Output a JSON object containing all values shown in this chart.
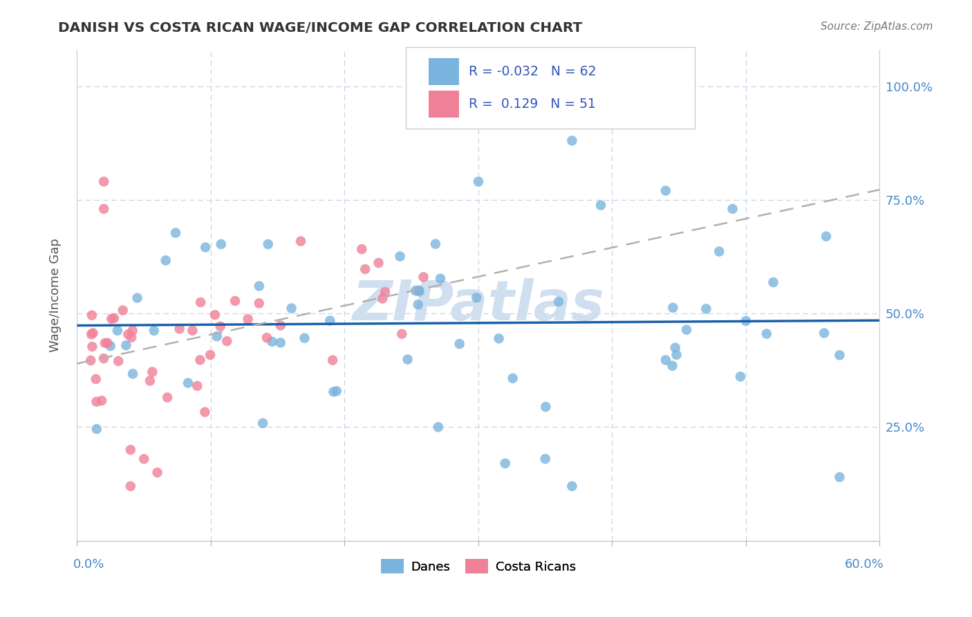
{
  "title": "DANISH VS COSTA RICAN WAGE/INCOME GAP CORRELATION CHART",
  "source": "Source: ZipAtlas.com",
  "ylabel": "Wage/Income Gap",
  "y_ticks": [
    0.25,
    0.5,
    0.75,
    1.0
  ],
  "y_tick_labels": [
    "25.0%",
    "50.0%",
    "75.0%",
    "100.0%"
  ],
  "xlim": [
    0.0,
    0.6
  ],
  "ylim": [
    0.0,
    1.08
  ],
  "danes_label": "Danes",
  "costa_ricans_label": "Costa Ricans",
  "danes_color": "#7ab4de",
  "costa_ricans_color": "#f08098",
  "danes_line_color": "#1a5fa8",
  "costa_ricans_line_color": "#b0b0b0",
  "watermark": "ZIPatlas",
  "watermark_color": "#d0dff0",
  "background_color": "#ffffff",
  "grid_color": "#c8d4e8",
  "danes_R": -0.032,
  "danes_N": 62,
  "cr_R": 0.129,
  "cr_N": 51,
  "legend_R_color": "#3355bb",
  "tick_color": "#4488cc",
  "title_color": "#333333",
  "source_color": "#777777",
  "ylabel_color": "#555555"
}
